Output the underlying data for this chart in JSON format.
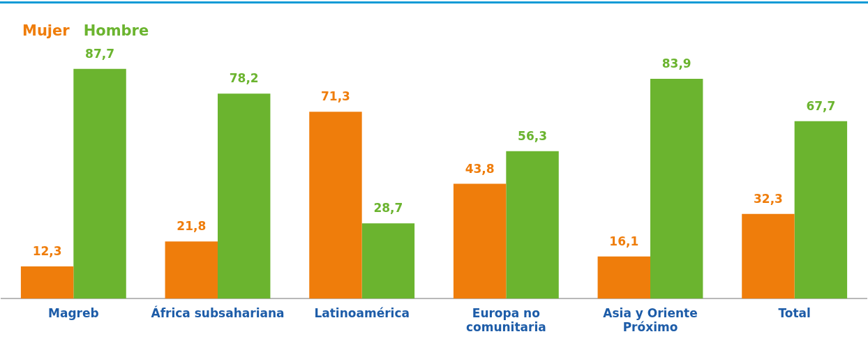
{
  "chart_data": {
    "type": "bar",
    "categories": [
      "Magreb",
      "África subsahariana",
      "Latinoamérica",
      "Europa no comunitaria",
      "Asia y Oriente Próximo",
      "Total"
    ],
    "series": [
      {
        "name": "Mujer",
        "color": "#ef7d0b",
        "values": [
          12.3,
          21.8,
          71.3,
          43.8,
          16.1,
          32.3
        ],
        "value_labels": [
          "12,3",
          "21,8",
          "71,3",
          "43,8",
          "16,1",
          "32,3"
        ]
      },
      {
        "name": "Hombre",
        "color": "#6bb42f",
        "values": [
          87.7,
          78.2,
          28.7,
          56.3,
          83.9,
          67.7
        ],
        "value_labels": [
          "87,7",
          "78,2",
          "28,7",
          "56,3",
          "83,9",
          "67,7"
        ]
      }
    ],
    "legend": "top left",
    "grid": false
  }
}
